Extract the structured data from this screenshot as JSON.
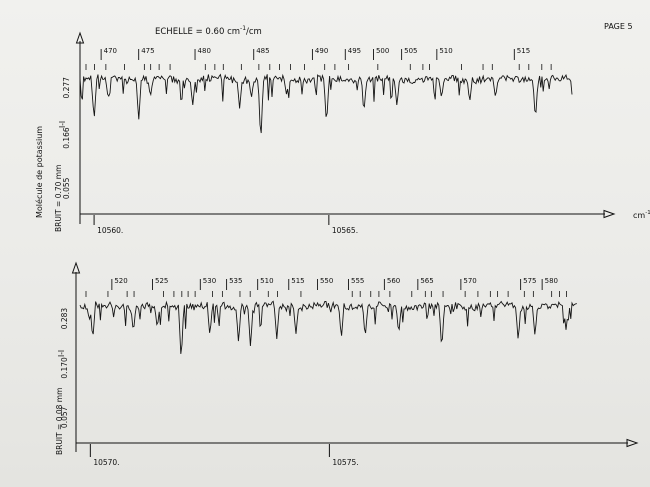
{
  "header": {
    "echelle_prefix": "ECHELLE = 0.60 cm",
    "echelle_exp": "-1",
    "echelle_suffix": "/cm",
    "page_label": "PAGE 5"
  },
  "side_label": "Molécule de potassium",
  "x_unit": "cm",
  "x_unit_exp": "-1",
  "panels": [
    {
      "bruit_label": "BRUIT = 0.70 mm",
      "y_axis_label": "I-I",
      "y_ticks": [
        "0.277",
        "0.166",
        "0.055"
      ],
      "x_ticks": [
        "10560.",
        "10565."
      ],
      "line_numbers": [
        "470",
        "475",
        "480",
        "485",
        "490",
        "495",
        "500",
        "505",
        "510",
        "515"
      ]
    },
    {
      "bruit_label": "BRUIT = 0.08 mm",
      "y_axis_label": "I-I",
      "y_ticks": [
        "0.283",
        "0.170",
        "0.057"
      ],
      "x_ticks": [
        "10570.",
        "10575."
      ],
      "line_numbers": [
        "520",
        "525",
        "530",
        "535",
        "510",
        "515",
        "550",
        "555",
        "560",
        "565",
        "570",
        "575",
        "580"
      ]
    }
  ],
  "chart_data": [
    {
      "type": "line",
      "title": "ECHELLE = 0.60 cm-1/cm",
      "xlabel": "cm-1",
      "ylabel": "I-I",
      "xlim": [
        10559.7,
        10570.2
      ],
      "ylim": [
        0.0,
        0.34
      ],
      "x_ticks": [
        10560,
        10565
      ],
      "y_ticks": [
        0.277,
        0.166,
        0.055
      ],
      "line_markers": [
        {
          "label": "470",
          "x": 10560.15
        },
        {
          "label": "475",
          "x": 10560.95
        },
        {
          "label": "480",
          "x": 10562.15
        },
        {
          "label": "485",
          "x": 10563.4
        },
        {
          "label": "490",
          "x": 10564.65
        },
        {
          "label": "495",
          "x": 10565.35
        },
        {
          "label": "500",
          "x": 10565.95
        },
        {
          "label": "505",
          "x": 10566.55
        },
        {
          "label": "510",
          "x": 10567.3
        },
        {
          "label": "515",
          "x": 10568.95
        }
      ],
      "absorption_lines": [
        {
          "x": 10560.0,
          "y": 0.205
        },
        {
          "x": 10560.3,
          "y": 0.255
        },
        {
          "x": 10560.95,
          "y": 0.205
        },
        {
          "x": 10561.2,
          "y": 0.258
        },
        {
          "x": 10562.1,
          "y": 0.238
        },
        {
          "x": 10563.1,
          "y": 0.232
        },
        {
          "x": 10563.35,
          "y": 0.255
        },
        {
          "x": 10563.55,
          "y": 0.155
        },
        {
          "x": 10564.1,
          "y": 0.262
        },
        {
          "x": 10564.95,
          "y": 0.195
        },
        {
          "x": 10565.75,
          "y": 0.228
        },
        {
          "x": 10566.45,
          "y": 0.238
        },
        {
          "x": 10567.4,
          "y": 0.255
        },
        {
          "x": 10568.0,
          "y": 0.246
        },
        {
          "x": 10568.55,
          "y": 0.256
        },
        {
          "x": 10569.4,
          "y": 0.205
        }
      ]
    },
    {
      "type": "line",
      "title": "",
      "xlabel": "cm-1",
      "ylabel": "I-I",
      "xlim": [
        10569.7,
        10580.2
      ],
      "ylim": [
        0.0,
        0.35
      ],
      "x_ticks": [
        10570,
        10575
      ],
      "y_ticks": [
        0.283,
        0.17,
        0.057
      ],
      "line_markers": [
        {
          "label": "520",
          "x": 10570.45
        },
        {
          "label": "525",
          "x": 10571.3
        },
        {
          "label": "530",
          "x": 10572.3
        },
        {
          "label": "535",
          "x": 10572.85
        },
        {
          "label": "510",
          "x": 10573.5
        },
        {
          "label": "515",
          "x": 10574.15
        },
        {
          "label": "550",
          "x": 10574.75
        },
        {
          "label": "555",
          "x": 10575.4
        },
        {
          "label": "560",
          "x": 10576.15
        },
        {
          "label": "565",
          "x": 10576.85
        },
        {
          "label": "570",
          "x": 10577.75
        },
        {
          "label": "575",
          "x": 10579.0
        },
        {
          "label": "580",
          "x": 10579.45
        }
      ],
      "absorption_lines": [
        {
          "x": 10570.05,
          "y": 0.235
        },
        {
          "x": 10570.9,
          "y": 0.252
        },
        {
          "x": 10571.4,
          "y": 0.262
        },
        {
          "x": 10571.9,
          "y": 0.185
        },
        {
          "x": 10572.5,
          "y": 0.245
        },
        {
          "x": 10573.1,
          "y": 0.228
        },
        {
          "x": 10573.35,
          "y": 0.218
        },
        {
          "x": 10573.9,
          "y": 0.238
        },
        {
          "x": 10574.3,
          "y": 0.248
        },
        {
          "x": 10575.25,
          "y": 0.238
        },
        {
          "x": 10575.75,
          "y": 0.242
        },
        {
          "x": 10576.45,
          "y": 0.248
        },
        {
          "x": 10577.35,
          "y": 0.212
        },
        {
          "x": 10578.95,
          "y": 0.232
        },
        {
          "x": 10579.3,
          "y": 0.244
        },
        {
          "x": 10579.95,
          "y": 0.258
        }
      ]
    }
  ]
}
